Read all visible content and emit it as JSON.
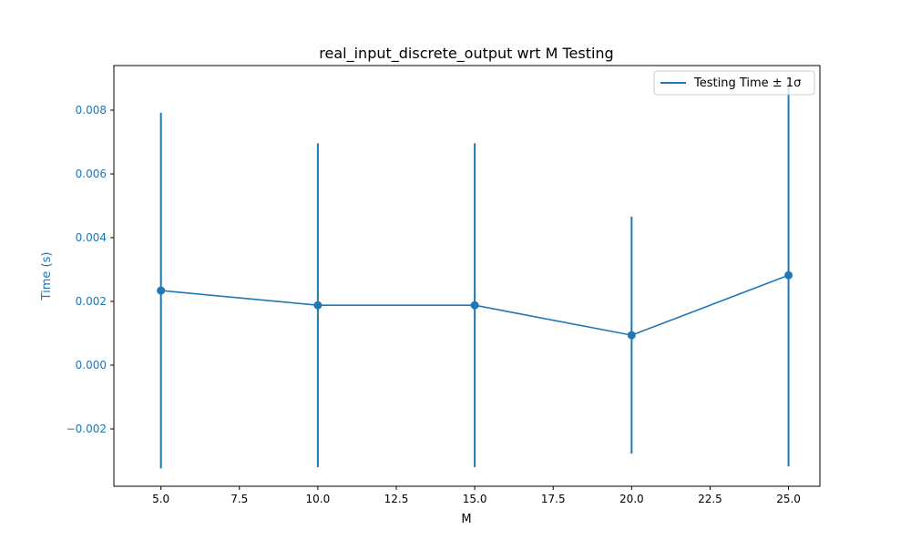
{
  "chart_data": {
    "type": "line",
    "title": "real_input_discrete_output wrt M Testing",
    "xlabel": "M",
    "ylabel": "Time (s)",
    "xlim": [
      3.5,
      26.0
    ],
    "ylim": [
      -0.0038,
      0.0094
    ],
    "x_ticks": [
      5.0,
      7.5,
      10.0,
      12.5,
      15.0,
      17.5,
      20.0,
      22.5,
      25.0
    ],
    "x_tick_labels": [
      "5.0",
      "7.5",
      "10.0",
      "12.5",
      "15.0",
      "17.5",
      "20.0",
      "22.5",
      "25.0"
    ],
    "y_ticks": [
      -0.002,
      0.0,
      0.002,
      0.004,
      0.006,
      0.008
    ],
    "y_tick_labels": [
      "−0.002",
      "0.000",
      "0.002",
      "0.004",
      "0.006",
      "0.008"
    ],
    "legend_position": "top-right",
    "grid": false,
    "series": [
      {
        "name": "Testing Time ± 1σ",
        "color": "#1f77b4",
        "x": [
          5,
          10,
          15,
          20,
          25
        ],
        "y": [
          0.00234,
          0.00188,
          0.00188,
          0.00094,
          0.00282
        ],
        "err": [
          0.00558,
          0.00508,
          0.00508,
          0.00372,
          0.006
        ]
      }
    ],
    "ylabel_color": "#1f77b4",
    "ytick_color": "#1f77b4"
  }
}
